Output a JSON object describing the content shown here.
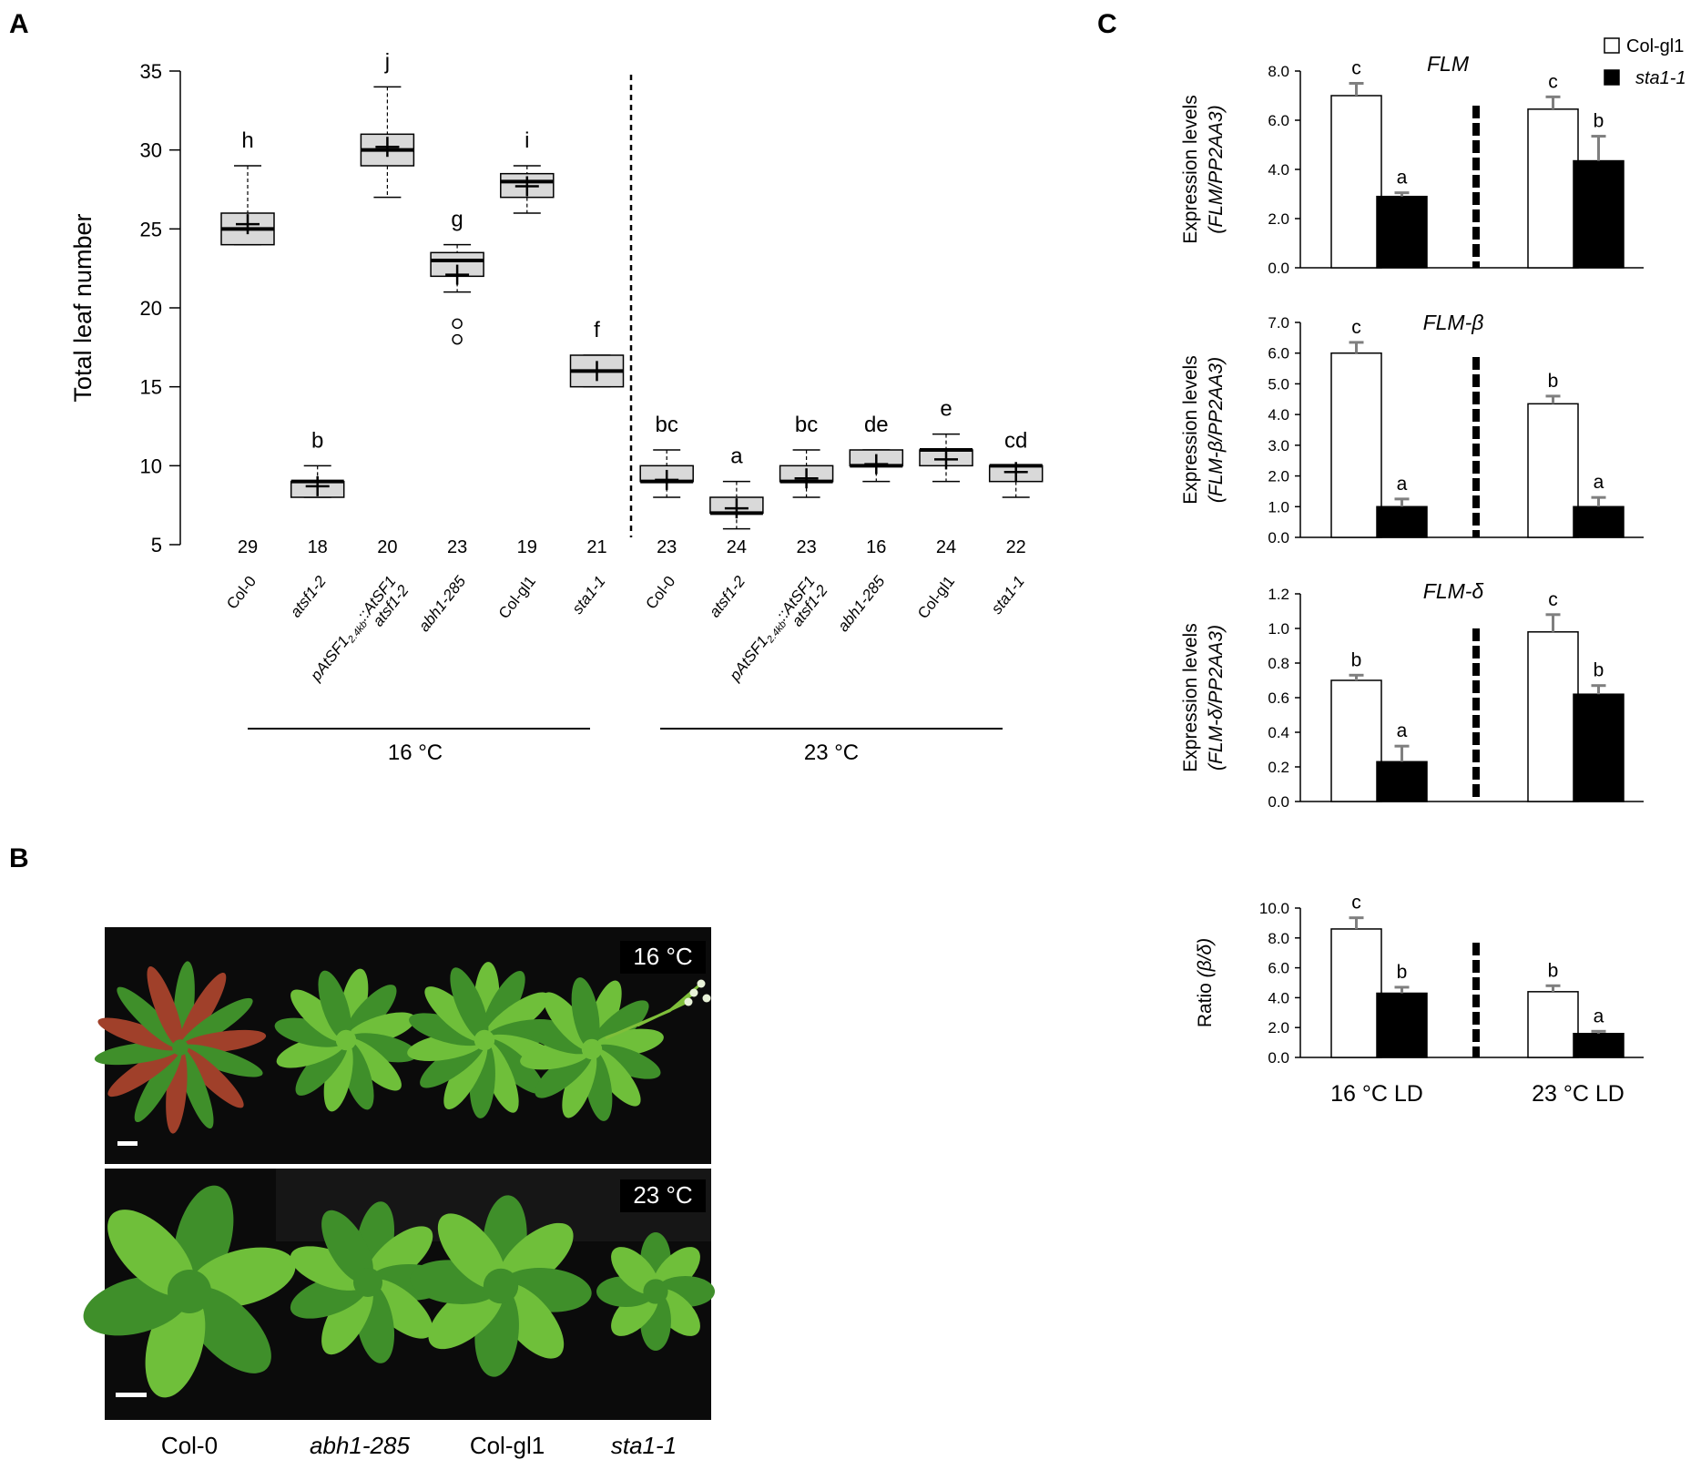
{
  "panels": {
    "a_label": "A",
    "b_label": "B",
    "c_label": "C"
  },
  "panel_b": {
    "badge_16": "16 °C",
    "badge_23": "23 °C",
    "labels": [
      "Col-0",
      "abh1-285",
      "Col-gl1",
      "sta1-1"
    ],
    "label_italic": [
      false,
      true,
      false,
      true
    ],
    "colors": {
      "background": "#0b0b0b",
      "leaf_dark": "#3f8f2a",
      "leaf_light": "#6fbf3a",
      "leaf_red": "#a0402a"
    }
  },
  "chart_data": [
    {
      "id": "panel-a",
      "type": "box",
      "ylabel": "Total leaf number",
      "ylim": [
        5,
        35
      ],
      "yticks": [
        5,
        10,
        15,
        20,
        25,
        30,
        35
      ],
      "grid": false,
      "groups": [
        {
          "label": "16 °C",
          "categories": [
            "Col-0",
            "atsf1-2",
            "pAtSF1_2.4kb::AtSF1 atsf1-2",
            "abh1-285",
            "Col-gl1",
            "sta1-1"
          ]
        },
        {
          "label": "23 °C",
          "categories": [
            "Col-0",
            "atsf1-2",
            "pAtSF1_2.4kb::AtSF1 atsf1-2",
            "abh1-285",
            "Col-gl1",
            "sta1-1"
          ]
        }
      ],
      "boxes": [
        {
          "label": "Col-0",
          "italic": false,
          "min": 24,
          "q1": 24,
          "median": 25,
          "q3": 26,
          "max": 29,
          "mean": 25.3,
          "n": "29",
          "letter": "h",
          "outliers": []
        },
        {
          "label": "atsf1-2",
          "italic": true,
          "min": 8,
          "q1": 8,
          "median": 9,
          "q3": 9,
          "max": 10,
          "mean": 8.7,
          "n": "18",
          "letter": "b",
          "outliers": []
        },
        {
          "label": "pAtSF1",
          "sub": "2.4kb",
          "label_rest": "::AtSF1",
          "label_line2": "atsf1-2",
          "italic": true,
          "min": 27,
          "q1": 29,
          "median": 30,
          "q3": 31,
          "max": 34,
          "mean": 30.2,
          "n": "20",
          "letter": "j",
          "outliers": []
        },
        {
          "label": "abh1-285",
          "italic": true,
          "min": 21,
          "q1": 22,
          "median": 23,
          "q3": 23.5,
          "max": 24,
          "mean": 22.1,
          "n": "23",
          "letter": "g",
          "outliers": [
            19,
            18
          ]
        },
        {
          "label": "Col-gl1",
          "italic": false,
          "min": 26,
          "q1": 27,
          "median": 28,
          "q3": 28.5,
          "max": 29,
          "mean": 27.7,
          "n": "19",
          "letter": "i",
          "outliers": []
        },
        {
          "label": "sta1-1",
          "italic": true,
          "min": 15,
          "q1": 15,
          "median": 16,
          "q3": 17,
          "max": 17,
          "mean": 16,
          "n": "21",
          "letter": "f",
          "outliers": []
        },
        {
          "label": "Col-0",
          "italic": false,
          "min": 8,
          "q1": 9,
          "median": 9,
          "q3": 10,
          "max": 11,
          "mean": 9.1,
          "n": "23",
          "letter": "bc",
          "outliers": []
        },
        {
          "label": "atsf1-2",
          "italic": true,
          "min": 6,
          "q1": 7,
          "median": 7,
          "q3": 8,
          "max": 9,
          "mean": 7.3,
          "n": "24",
          "letter": "a",
          "outliers": []
        },
        {
          "label": "pAtSF1",
          "sub": "2.4kb",
          "label_rest": "::AtSF1",
          "label_line2": "atsf1-2",
          "italic": true,
          "min": 8,
          "q1": 9,
          "median": 9,
          "q3": 10,
          "max": 11,
          "mean": 9.2,
          "n": "23",
          "letter": "bc",
          "outliers": []
        },
        {
          "label": "abh1-285",
          "italic": true,
          "min": 9,
          "q1": 10,
          "median": 10,
          "q3": 11,
          "max": 11,
          "mean": 10.1,
          "n": "16",
          "letter": "de",
          "outliers": []
        },
        {
          "label": "Col-gl1",
          "italic": false,
          "min": 9,
          "q1": 10,
          "median": 11,
          "q3": 11,
          "max": 12,
          "mean": 10.4,
          "n": "24",
          "letter": "e",
          "outliers": []
        },
        {
          "label": "sta1-1",
          "italic": true,
          "min": 8,
          "q1": 9,
          "median": 10,
          "q3": 10,
          "max": 10,
          "mean": 9.6,
          "n": "22",
          "letter": "cd",
          "outliers": []
        }
      ]
    },
    {
      "id": "panel-c-flm",
      "type": "bar",
      "title": "FLM",
      "ylabel_line1": "Expression levels",
      "ylabel_line2": "(FLM/PP2AA3)",
      "ylim": [
        0,
        8
      ],
      "yticks": [
        "0.0",
        "2.0",
        "4.0",
        "6.0",
        "8.0"
      ],
      "categories": [
        "16 °C LD",
        "23 °C LD"
      ],
      "series": [
        {
          "name": "Col-gl1",
          "values": [
            7.0,
            6.45
          ],
          "errors": [
            0.5,
            0.5
          ],
          "letters": [
            "c",
            "c"
          ]
        },
        {
          "name": "sta1-1",
          "values": [
            2.9,
            4.35
          ],
          "errors": [
            0.15,
            1.0
          ],
          "letters": [
            "a",
            "b"
          ]
        }
      ]
    },
    {
      "id": "panel-c-flm-beta",
      "type": "bar",
      "title": "FLM-β",
      "ylabel_line1": "Expression levels",
      "ylabel_line2": "(FLM-β/PP2AA3)",
      "ylim": [
        0,
        7
      ],
      "yticks": [
        "0.0",
        "1.0",
        "2.0",
        "3.0",
        "4.0",
        "5.0",
        "6.0",
        "7.0"
      ],
      "categories": [
        "16 °C LD",
        "23 °C LD"
      ],
      "series": [
        {
          "name": "Col-gl1",
          "values": [
            6.0,
            4.35
          ],
          "errors": [
            0.35,
            0.25
          ],
          "letters": [
            "c",
            "b"
          ]
        },
        {
          "name": "sta1-1",
          "values": [
            1.0,
            1.0
          ],
          "errors": [
            0.25,
            0.3
          ],
          "letters": [
            "a",
            "a"
          ]
        }
      ]
    },
    {
      "id": "panel-c-flm-delta",
      "type": "bar",
      "title": "FLM-δ",
      "ylabel_line1": "Expression levels",
      "ylabel_line2": "(FLM-δ/PP2AA3)",
      "ylim": [
        0,
        1.2
      ],
      "yticks": [
        "0.0",
        "0.2",
        "0.4",
        "0.6",
        "0.8",
        "1.0",
        "1.2"
      ],
      "categories": [
        "16 °C LD",
        "23 °C LD"
      ],
      "series": [
        {
          "name": "Col-gl1",
          "values": [
            0.7,
            0.98
          ],
          "errors": [
            0.03,
            0.1
          ],
          "letters": [
            "b",
            "c"
          ]
        },
        {
          "name": "sta1-1",
          "values": [
            0.23,
            0.62
          ],
          "errors": [
            0.09,
            0.05
          ],
          "letters": [
            "a",
            "b"
          ]
        }
      ]
    },
    {
      "id": "panel-c-ratio",
      "type": "bar",
      "title": "",
      "ylabel_prefix": "Ratio ",
      "ylabel_italic": "(β/δ)",
      "ylim": [
        0,
        10
      ],
      "yticks": [
        "0.0",
        "2.0",
        "4.0",
        "6.0",
        "8.0",
        "10.0"
      ],
      "categories": [
        "16 °C LD",
        "23 °C LD"
      ],
      "series": [
        {
          "name": "Col-gl1",
          "values": [
            8.6,
            4.4
          ],
          "errors": [
            0.75,
            0.4
          ],
          "letters": [
            "c",
            "b"
          ]
        },
        {
          "name": "sta1-1",
          "values": [
            4.3,
            1.6
          ],
          "errors": [
            0.4,
            0.15
          ],
          "letters": [
            "b",
            "a"
          ]
        }
      ]
    }
  ],
  "legend": {
    "placement": "top-right",
    "items": [
      {
        "label": "Col-gl1",
        "italic": false,
        "fill": "#ffffff"
      },
      {
        "label": "sta1-1",
        "italic": true,
        "fill": "#000000"
      }
    ]
  },
  "colors": {
    "box_fill": "#d9d9d9",
    "bar_open": "#ffffff",
    "bar_filled": "#000000",
    "error_bar": "#7f7f7f"
  }
}
